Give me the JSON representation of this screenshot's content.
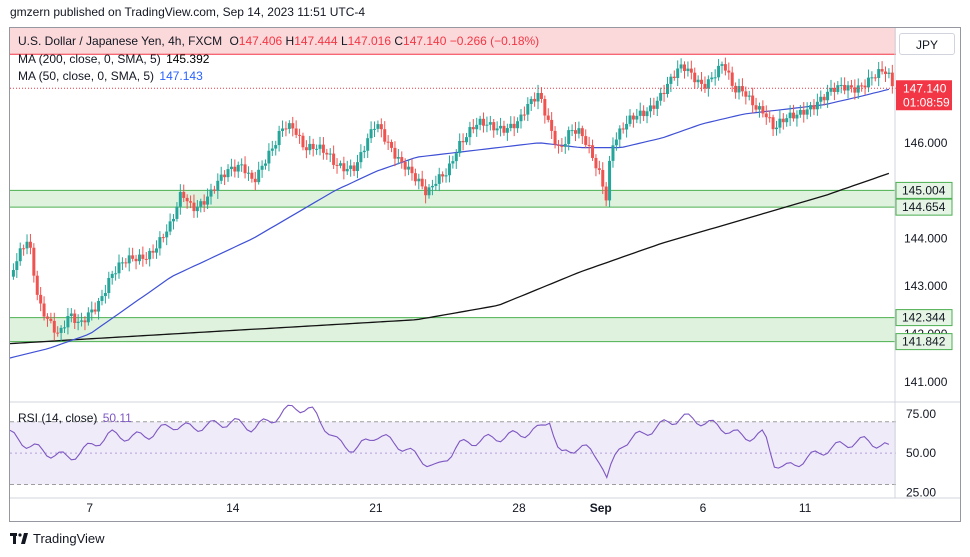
{
  "publisher_line": "gmzern published on TradingView.com, Sep 14, 2023 11:51 UTC-4",
  "legend": {
    "symbol": "U.S. Dollar / Japanese Yen, 4h, FXCM",
    "o_label": "O",
    "o": "147.406",
    "h_label": "H",
    "h": "147.444",
    "l_label": "L",
    "l": "147.016",
    "c_label": "C",
    "c": "147.140",
    "change": "−0.266 (−0.18%)",
    "ma200_label": "MA (200, close, 0, SMA, 5)",
    "ma200_value": "145.392",
    "ma50_label": "MA (50, close, 0, SMA, 5)",
    "ma50_value": "147.143",
    "rsi_label": "RSI (14, close)",
    "rsi_value": "50.11"
  },
  "currency_button": "JPY",
  "footer": {
    "brand": "TradingView"
  },
  "colors": {
    "up": "#26a69a",
    "down": "#ef5350",
    "ma50": "#3f51d6",
    "ma200": "#131313",
    "rsi": "#7e57c2",
    "zone_fill": "#d8f0d8",
    "zone_line": "#4caf50",
    "resistance_fill": "#fbd9da",
    "resistance_line": "#f23645",
    "price_label": "#f23645"
  },
  "chart_data": [
    {
      "type": "candlestick",
      "interval": "4h",
      "symbol": "USDJPY",
      "ylim": [
        140.6,
        148.4
      ],
      "y_ticks": [
        "141.000",
        "142.000",
        "143.000",
        "144.000",
        "145.000",
        "146.000",
        "147.000",
        "148.000"
      ],
      "x_ticks": [
        "7",
        "14",
        "21",
        "28",
        "Sep",
        "6",
        "11"
      ],
      "x_tick_days": [
        7,
        14,
        21,
        28,
        32,
        37,
        42
      ],
      "x_range_days": [
        3.1,
        46.3
      ],
      "last_price": {
        "value": 147.14,
        "label": "147.140",
        "countdown": "01:08:59"
      },
      "zones": [
        {
          "from": 144.654,
          "to": 145.004,
          "labels": [
            "145.004",
            "144.654"
          ]
        },
        {
          "from": 141.842,
          "to": 142.344,
          "labels": [
            "142.344",
            "141.842"
          ]
        }
      ],
      "resistance_top_band": {
        "from": 147.85,
        "to": 148.5
      },
      "price_series": {
        "days": [
          3.1,
          3.6,
          4.0,
          4.5,
          5.0,
          5.5,
          6.0,
          6.5,
          7.0,
          7.5,
          8.0,
          9.0,
          10.0,
          11.0,
          11.5,
          12.0,
          13.0,
          14.0,
          14.5,
          15.0,
          16.0,
          16.5,
          17.0,
          17.5,
          18.0,
          19.0,
          20.0,
          21.0,
          21.5,
          22.0,
          22.5,
          23.0,
          23.5,
          24.0,
          24.5,
          25.0,
          26.0,
          27.0,
          28.0,
          29.0,
          30.0,
          30.5,
          31.0,
          31.5,
          32.0,
          32.3,
          32.5,
          33.0,
          34.0,
          35.0,
          36.0,
          37.0,
          38.0,
          38.5,
          39.0,
          40.0,
          40.5,
          41.0,
          41.5,
          42.0,
          43.0,
          44.0,
          45.0,
          46.0,
          46.3
        ],
        "close": [
          143.2,
          143.6,
          143.9,
          142.7,
          142.4,
          142.0,
          142.3,
          142.1,
          142.5,
          142.8,
          143.2,
          143.5,
          143.8,
          144.2,
          144.9,
          144.7,
          145.0,
          145.4,
          145.6,
          145.3,
          145.8,
          146.3,
          146.4,
          146.0,
          145.9,
          145.5,
          145.6,
          146.3,
          146.0,
          145.8,
          145.6,
          145.2,
          144.8,
          145.2,
          145.5,
          146.0,
          146.3,
          146.4,
          146.4,
          147.0,
          145.9,
          146.2,
          146.1,
          145.8,
          145.4,
          144.9,
          146.0,
          146.2,
          146.6,
          147.1,
          147.5,
          147.3,
          147.6,
          147.0,
          147.1,
          146.7,
          146.2,
          146.4,
          146.6,
          146.8,
          146.9,
          147.2,
          147.3,
          147.4,
          147.14
        ]
      },
      "ma50_series": {
        "days": [
          3.1,
          5.0,
          7.0,
          9.0,
          11.0,
          13.0,
          15.0,
          17.0,
          19.0,
          21.0,
          23.0,
          25.0,
          27.0,
          29.0,
          31.0,
          33.0,
          35.0,
          37.0,
          39.0,
          41.0,
          43.0,
          45.0,
          46.3
        ],
        "values": [
          141.5,
          141.7,
          142.0,
          142.6,
          143.2,
          143.6,
          144.0,
          144.5,
          145.0,
          145.4,
          145.7,
          145.8,
          145.9,
          146.0,
          145.9,
          145.9,
          146.1,
          146.4,
          146.6,
          146.7,
          146.8,
          147.0,
          147.14
        ]
      },
      "ma200_series": {
        "days": [
          3.1,
          7.0,
          11.0,
          15.0,
          19.0,
          23.0,
          27.0,
          31.0,
          35.0,
          39.0,
          43.0,
          46.3
        ],
        "values": [
          141.8,
          141.9,
          142.0,
          142.1,
          142.2,
          142.3,
          142.6,
          143.3,
          143.9,
          144.4,
          144.9,
          145.39
        ]
      }
    },
    {
      "type": "line",
      "title": "RSI (14, close)",
      "ylim": [
        22,
        82
      ],
      "y_ticks": [
        "25.00",
        "50.00",
        "75.00"
      ],
      "band": [
        30,
        70
      ],
      "days": [
        3.1,
        4.0,
        5.0,
        6.0,
        7.0,
        8.0,
        9.0,
        10.0,
        11.0,
        12.0,
        13.0,
        14.0,
        15.0,
        16.0,
        17.0,
        18.0,
        19.0,
        20.0,
        21.0,
        22.0,
        23.0,
        24.0,
        25.0,
        26.0,
        27.0,
        28.0,
        29.0,
        29.5,
        30.0,
        31.0,
        32.0,
        32.3,
        33.0,
        34.0,
        35.0,
        36.0,
        37.0,
        38.0,
        39.0,
        40.0,
        40.5,
        41.0,
        42.0,
        43.0,
        44.0,
        45.0,
        46.0,
        46.3
      ],
      "values": [
        62,
        55,
        50,
        47,
        54,
        62,
        60,
        62,
        68,
        66,
        68,
        70,
        66,
        72,
        80,
        76,
        58,
        52,
        62,
        56,
        48,
        40,
        55,
        58,
        60,
        62,
        65,
        72,
        48,
        55,
        46,
        34,
        56,
        62,
        68,
        73,
        70,
        66,
        60,
        62,
        44,
        40,
        46,
        52,
        56,
        58,
        54,
        50.11
      ]
    }
  ]
}
